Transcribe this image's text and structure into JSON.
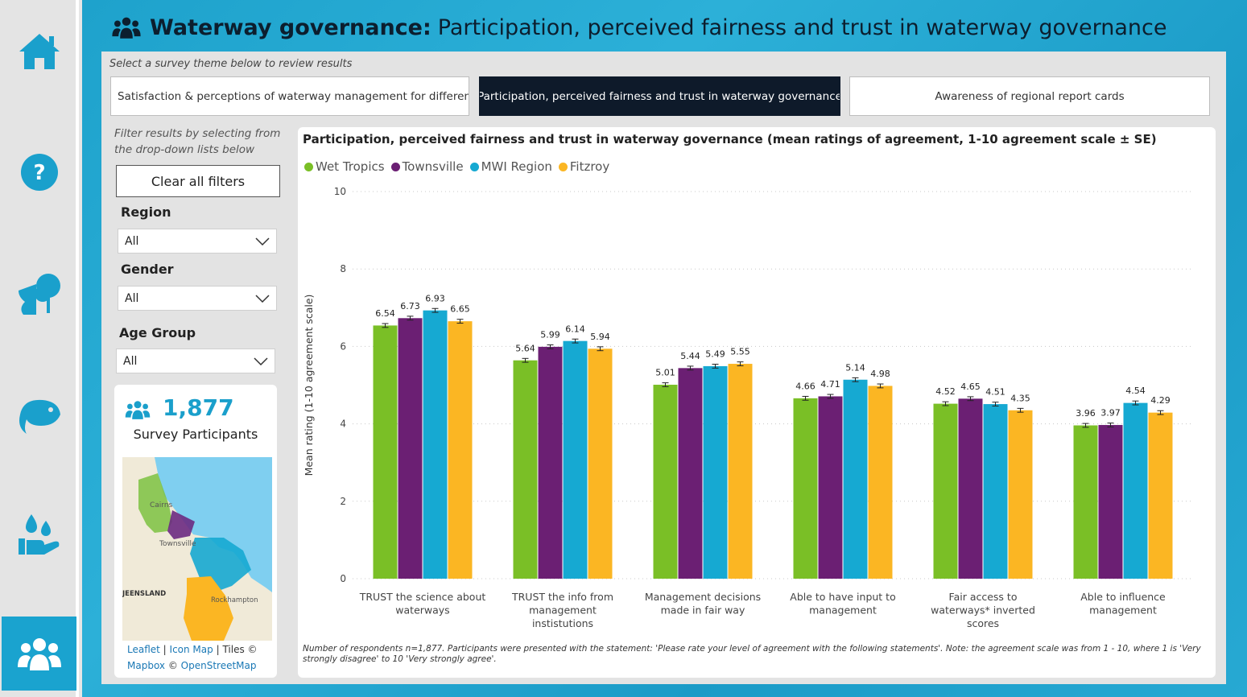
{
  "header": {
    "title_strong": "Waterway governance:",
    "title_rest": "Participation, perceived fairness and trust in waterway governance"
  },
  "nav": {
    "items": [
      {
        "icon": "home-icon"
      },
      {
        "icon": "question-icon"
      },
      {
        "icon": "tree-river-icon"
      },
      {
        "icon": "fish-icon"
      },
      {
        "icon": "water-hand-icon"
      },
      {
        "icon": "people-icon",
        "active": true
      }
    ]
  },
  "themes": {
    "prompt": "Select a survey theme below to review results",
    "tabs": [
      {
        "label": "Satisfaction & perceptions of waterway management for differen..."
      },
      {
        "label": "Participation, perceived fairness and trust in waterway governance",
        "active": true
      },
      {
        "label": "Awareness of regional report cards"
      }
    ]
  },
  "filters": {
    "hint": "Filter results by selecting from the drop-down lists below",
    "clear_label": "Clear all filters",
    "region": {
      "label": "Region",
      "value": "All"
    },
    "gender": {
      "label": "Gender",
      "value": "All"
    },
    "age": {
      "label": "Age Group",
      "value": "All"
    }
  },
  "participants": {
    "count": "1,877",
    "label": "Survey Participants"
  },
  "map": {
    "labels": {
      "cairns": "Cairns",
      "townsville": "Townsville",
      "queensland": "JEENSLAND",
      "rockhampton": "Rockhampton"
    },
    "attribution": {
      "leaflet": "Leaflet",
      "sep1": " | ",
      "iconmap": "Icon Map",
      "tiles": " | Tiles © ",
      "mapbox": "Mapbox",
      "osm_sep": " © ",
      "osm": "OpenStreetMap"
    }
  },
  "colors": {
    "wet_tropics": "#7abf26",
    "townsville": "#6b1f73",
    "mwi_region": "#16a9d2",
    "fitzroy": "#fbb623"
  },
  "chart_data": {
    "type": "bar",
    "title": "Participation, perceived fairness and trust in waterway governance (mean ratings of agreement, 1-10 agreement scale ± SE)",
    "ylabel": "Mean rating (1-10 agreement scale)",
    "xlabel": "",
    "ylim": [
      0,
      10
    ],
    "yticks": [
      0,
      2,
      4,
      6,
      8,
      10
    ],
    "grid": true,
    "legend_position": "top-left",
    "categories": [
      [
        "TRUST the science about",
        "waterways"
      ],
      [
        "TRUST the info from",
        "management",
        "instistutions"
      ],
      [
        "Management decisions",
        "made in fair way"
      ],
      [
        "Able to have input to",
        "management"
      ],
      [
        "Fair access to",
        "waterways* inverted",
        "scores"
      ],
      [
        "Able to influence",
        "management"
      ]
    ],
    "series": [
      {
        "name": "Wet Tropics",
        "color": "#7abf26",
        "values": [
          6.54,
          5.64,
          5.01,
          4.66,
          4.52,
          3.96
        ],
        "labels": [
          "6.54",
          "5.64",
          "5.01",
          "4.66",
          "4.52",
          "3.96"
        ]
      },
      {
        "name": "Townsville",
        "color": "#6b1f73",
        "values": [
          6.73,
          5.99,
          5.44,
          4.71,
          4.65,
          3.97
        ],
        "labels": [
          "6.73",
          "5.99",
          "5.44",
          "4.71",
          "4.65",
          "3.97"
        ]
      },
      {
        "name": "MWI Region",
        "color": "#16a9d2",
        "values": [
          6.93,
          6.14,
          5.49,
          5.14,
          4.51,
          4.54
        ],
        "labels": [
          "6.93",
          "6.14",
          "5.49",
          "5.14",
          "4.51",
          "4.54"
        ]
      },
      {
        "name": "Fitzroy",
        "color": "#fbb623",
        "values": [
          6.65,
          5.94,
          5.55,
          4.98,
          4.35,
          4.29
        ],
        "labels": [
          "6.65",
          "5.94",
          "5.55",
          "4.98",
          "4.35",
          "4.29"
        ]
      }
    ],
    "error": 0.05,
    "footnote": "Number of respondents n=1,877. Participants were presented with the statement: 'Please rate your level of agreement with the following statements'. Note: the agreement scale was from 1 - 10, where 1 is 'Very strongly disagree' to 10 'Very strongly agree'."
  }
}
